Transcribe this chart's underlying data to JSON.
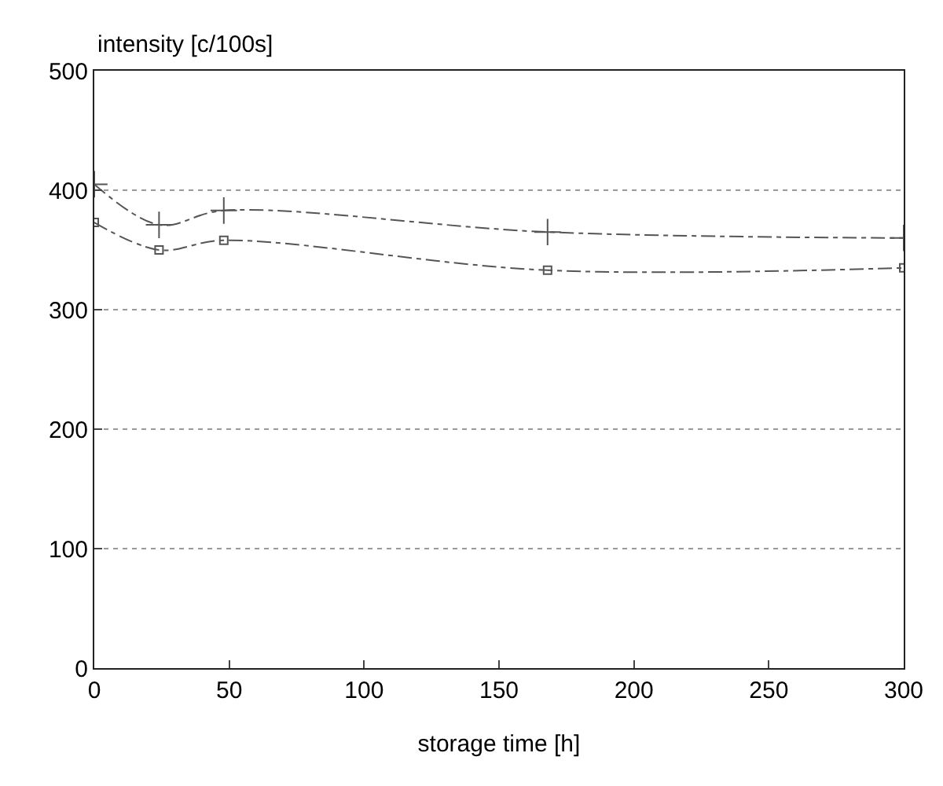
{
  "chart_data": {
    "type": "line",
    "ylabel": "intensity [c/100s]",
    "xlabel": "storage time [h]",
    "xlim": [
      0,
      300
    ],
    "xticks": [
      0,
      50,
      100,
      150,
      200,
      250,
      300
    ],
    "ylim": [
      0,
      500
    ],
    "yticks": [
      0,
      100,
      200,
      300,
      400,
      500
    ],
    "grid": "y",
    "line_style": "dashed",
    "series": [
      {
        "color": "#555555",
        "marker": "cross",
        "x": [
          0,
          24,
          48,
          168,
          300
        ],
        "values": [
          405,
          371,
          383,
          365,
          360
        ]
      },
      {
        "color": "#555555",
        "marker": "square",
        "x": [
          0,
          24,
          48,
          168,
          300
        ],
        "values": [
          373,
          350,
          358,
          333,
          335
        ]
      }
    ]
  }
}
